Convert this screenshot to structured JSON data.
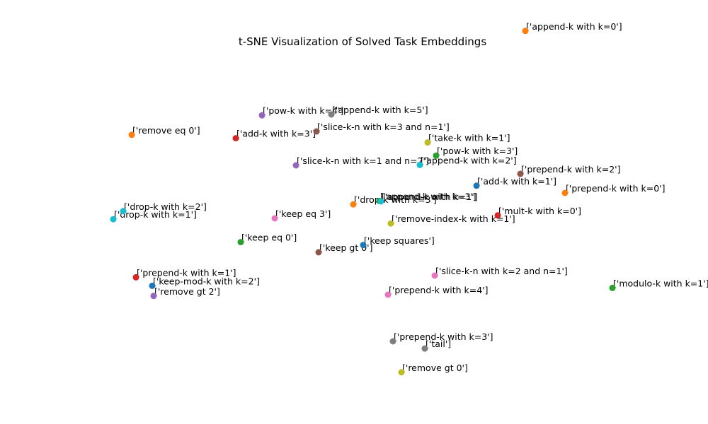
{
  "chart_data": {
    "type": "scatter",
    "title": "t-SNE Visualization of Solved Task Embeddings",
    "xlabel": "",
    "ylabel": "",
    "axes_visible": false,
    "grid": false,
    "xlim": [
      0,
      100
    ],
    "ylim": [
      0,
      100
    ],
    "points": [
      {
        "label": "['append-k with k=0']",
        "x": 74.2,
        "y": 92.7,
        "color": "#ff7f0e"
      },
      {
        "label": "['pow-k with k=4']",
        "x": 37.0,
        "y": 72.8,
        "color": "#9467bd"
      },
      {
        "label": "['append-k with k=5']",
        "x": 46.8,
        "y": 73.0,
        "color": "#7f7f7f"
      },
      {
        "label": "['slice-k-n with k=3 and n=1']",
        "x": 44.7,
        "y": 69.0,
        "color": "#8c564b"
      },
      {
        "label": "['remove eq 0']",
        "x": 18.6,
        "y": 68.2,
        "color": "#ff7f0e"
      },
      {
        "label": "['add-k with k=3']",
        "x": 33.3,
        "y": 67.4,
        "color": "#d62728"
      },
      {
        "label": "['take-k with k=1']",
        "x": 60.4,
        "y": 66.4,
        "color": "#bcbd22"
      },
      {
        "label": "['pow-k with k=3']",
        "x": 61.6,
        "y": 63.3,
        "color": "#2ca02c"
      },
      {
        "label": "['slice-k-n with k=1 and n=2']",
        "x": 41.8,
        "y": 61.0,
        "color": "#9467bd"
      },
      {
        "label": "['append-k with k=2']",
        "x": 59.3,
        "y": 61.1,
        "color": "#17becf"
      },
      {
        "label": "['prepend-k with k=2']",
        "x": 73.5,
        "y": 59.0,
        "color": "#8c564b"
      },
      {
        "label": "['add-k with k=1']",
        "x": 67.3,
        "y": 56.2,
        "color": "#1f77b4"
      },
      {
        "label": "['prepend-k with k=0']",
        "x": 79.8,
        "y": 54.5,
        "color": "#ff7f0e"
      },
      {
        "label": "['append-k with k=3']",
        "x": 53.6,
        "y": 52.6,
        "color": "#2ca02c"
      },
      {
        "label": "['append-k with k=1']",
        "x": 53.8,
        "y": 52.5,
        "color": "#17becf"
      },
      {
        "label": "['drop-k with k=3']",
        "x": 49.9,
        "y": 51.8,
        "color": "#ff7f0e"
      },
      {
        "label": "['drop-k with k=2']",
        "x": 17.4,
        "y": 50.2,
        "color": "#17becf"
      },
      {
        "label": "['drop-k with k=1']",
        "x": 16.0,
        "y": 48.3,
        "color": "#17becf"
      },
      {
        "label": "['keep eq 3']",
        "x": 38.8,
        "y": 48.5,
        "color": "#e377c2"
      },
      {
        "label": "['mult-k with k=0']",
        "x": 70.3,
        "y": 49.2,
        "color": "#d62728"
      },
      {
        "label": "['remove-index-k with k=1']",
        "x": 55.2,
        "y": 47.3,
        "color": "#bcbd22"
      },
      {
        "label": "['keep eq 0']",
        "x": 34.0,
        "y": 42.9,
        "color": "#2ca02c"
      },
      {
        "label": "['keep squares']",
        "x": 51.3,
        "y": 42.2,
        "color": "#1f77b4"
      },
      {
        "label": "['keep gt 0']",
        "x": 45.0,
        "y": 40.5,
        "color": "#8c564b"
      },
      {
        "label": "['prepend-k with k=1']",
        "x": 19.2,
        "y": 34.6,
        "color": "#d62728"
      },
      {
        "label": "['slice-k-n with k=2 and n=1']",
        "x": 61.4,
        "y": 35.0,
        "color": "#e377c2"
      },
      {
        "label": "['keep-mod-k with k=2']",
        "x": 21.5,
        "y": 32.6,
        "color": "#1f77b4"
      },
      {
        "label": "['modulo-k with k=1']",
        "x": 86.5,
        "y": 32.1,
        "color": "#2ca02c"
      },
      {
        "label": "['remove gt 2']",
        "x": 21.7,
        "y": 30.2,
        "color": "#9467bd"
      },
      {
        "label": "['prepend-k with k=4']",
        "x": 54.8,
        "y": 30.5,
        "color": "#e377c2"
      },
      {
        "label": "['prepend-k with k=3']",
        "x": 55.5,
        "y": 19.5,
        "color": "#7f7f7f"
      },
      {
        "label": "['tail']",
        "x": 60.0,
        "y": 17.8,
        "color": "#7f7f7f"
      },
      {
        "label": "['remove gt 0']",
        "x": 56.7,
        "y": 12.2,
        "color": "#bcbd22"
      }
    ]
  }
}
